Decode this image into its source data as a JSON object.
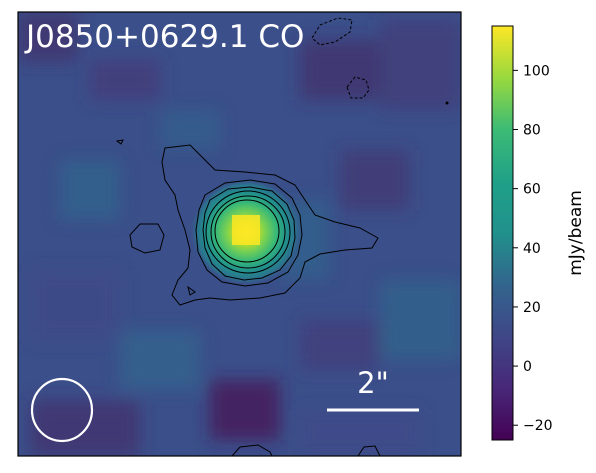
{
  "image_label": "J0850+0629.1 CO",
  "scale_bar_label": "2\"",
  "colorbar": {
    "label": "mJy/beam",
    "vmin": -25,
    "vmax": 115,
    "ticks": [
      "100",
      "80",
      "60",
      "40",
      "20",
      "0",
      "−20"
    ],
    "tick_values": [
      100,
      80,
      60,
      40,
      20,
      0,
      -20
    ],
    "colormap": "viridis"
  },
  "colors": {
    "background_map": "#3b4f8a",
    "label_text": "#ffffff",
    "contour": "#000000",
    "beam": "#ffffff",
    "frame": "#000000"
  }
}
